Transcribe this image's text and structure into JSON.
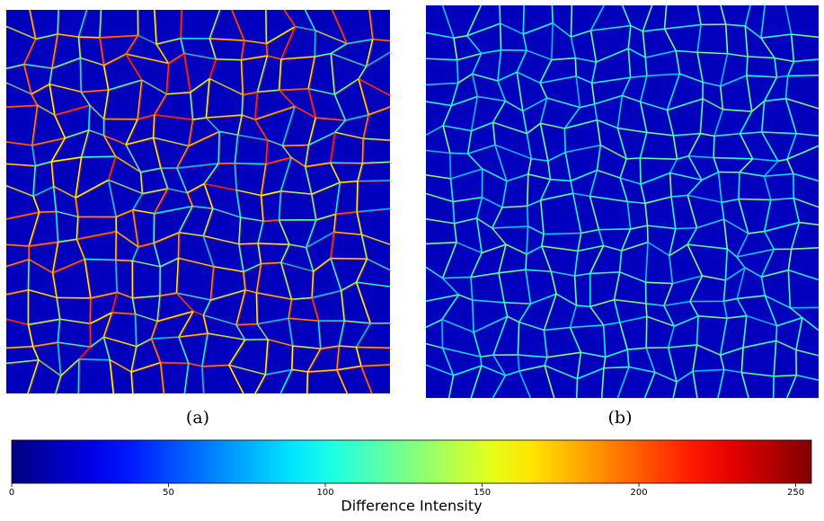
{
  "chart_data": {
    "type": "heatmap",
    "panels": [
      {
        "caption": "(a)"
      },
      {
        "caption": "(b)"
      }
    ],
    "colormap": "jet",
    "colorbar": {
      "label": "Difference Intensity",
      "lim": [
        0,
        255
      ],
      "ticks": [
        0,
        50,
        100,
        150,
        200,
        250
      ]
    }
  }
}
